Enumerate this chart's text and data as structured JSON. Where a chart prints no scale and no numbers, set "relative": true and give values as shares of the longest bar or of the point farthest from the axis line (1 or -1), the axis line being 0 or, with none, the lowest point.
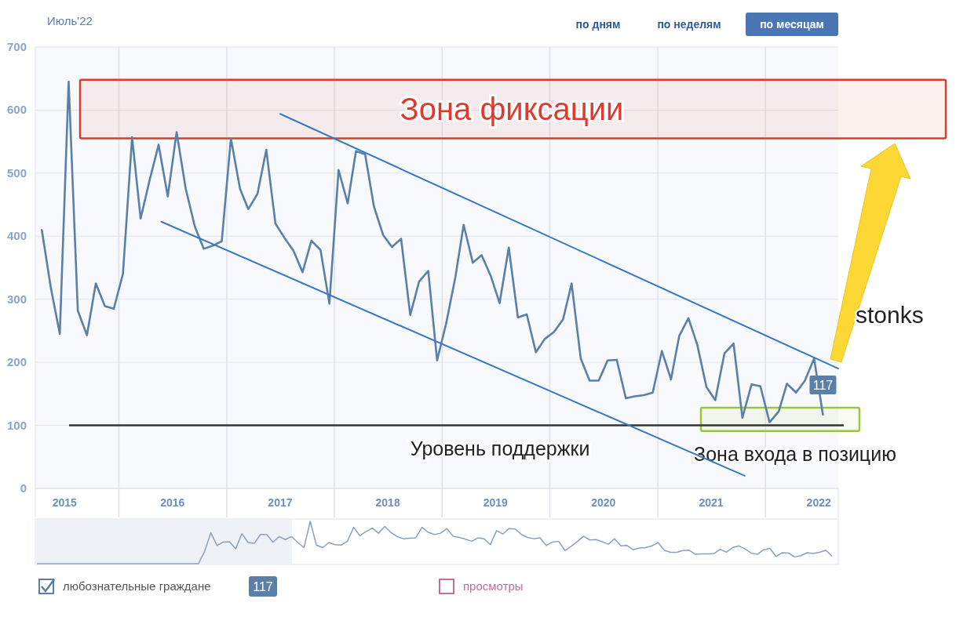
{
  "chart_data": [
    {
      "type": "line",
      "title": "Июль'22",
      "x": [
        "2015-04-15",
        "2015-05-15",
        "2015-06-15",
        "2015-07-15",
        "2015-08-15",
        "2015-09-15",
        "2015-10-15",
        "2015-11-15",
        "2015-12-15",
        "2016-01-15",
        "2016-02-15",
        "2016-03-15",
        "2016-04-15",
        "2016-05-15",
        "2016-06-15",
        "2016-07-15",
        "2016-08-15",
        "2016-09-15",
        "2016-10-15",
        "2016-11-15",
        "2016-12-15",
        "2017-01-15",
        "2017-02-15",
        "2017-03-15",
        "2017-04-15",
        "2017-05-15",
        "2017-06-15",
        "2017-07-15",
        "2017-08-15",
        "2017-09-15",
        "2017-10-15",
        "2017-11-15",
        "2017-12-15",
        "2018-01-15",
        "2018-02-15",
        "2018-03-15",
        "2018-04-15",
        "2018-05-15",
        "2018-06-15",
        "2018-07-15",
        "2018-08-15",
        "2018-09-15",
        "2018-10-15",
        "2018-11-15",
        "2018-12-15",
        "2019-01-15",
        "2019-02-15",
        "2019-03-15",
        "2019-04-15",
        "2019-05-15",
        "2019-06-15",
        "2019-07-15",
        "2019-08-15",
        "2019-09-15",
        "2019-10-15",
        "2019-11-15",
        "2019-12-15",
        "2020-01-15",
        "2020-02-15",
        "2020-03-15",
        "2020-04-15",
        "2020-05-15",
        "2020-06-15",
        "2020-07-15",
        "2020-08-15",
        "2020-09-15",
        "2020-10-15",
        "2020-11-15",
        "2020-12-15",
        "2021-01-15",
        "2021-02-15",
        "2021-03-15",
        "2021-04-15",
        "2021-05-15",
        "2021-06-15",
        "2021-07-15",
        "2021-08-15",
        "2021-09-15",
        "2021-10-15",
        "2021-11-15",
        "2021-12-15",
        "2022-01-15",
        "2022-02-15",
        "2022-03-15",
        "2022-04-15",
        "2022-05-15",
        "2022-06-15",
        "2022-07-15"
      ],
      "series": [
        {
          "name": "любознательные граждане",
          "color": "#5b80a8",
          "values": [
            410,
            320,
            245,
            645,
            282,
            243,
            325,
            289,
            285,
            340,
            557,
            428,
            490,
            545,
            463,
            565,
            475,
            415,
            380,
            385,
            392,
            555,
            475,
            443,
            467,
            537,
            420,
            398,
            377,
            343,
            393,
            378,
            293,
            505,
            452,
            535,
            530,
            447,
            402,
            383,
            396,
            275,
            328,
            345,
            203,
            262,
            335,
            418,
            358,
            370,
            337,
            294,
            382,
            271,
            276,
            216,
            237,
            248,
            268,
            325,
            206,
            171,
            171,
            203,
            204,
            143,
            146,
            148,
            152,
            218,
            173,
            242,
            270,
            228,
            161,
            140,
            214,
            230,
            112,
            165,
            162,
            105,
            122,
            166,
            152,
            171,
            206,
            117
          ],
          "value_labels": [
            null,
            null,
            null,
            null,
            null,
            null,
            null,
            null,
            null,
            null,
            null,
            null,
            null,
            null,
            null,
            null,
            null,
            null,
            null,
            null,
            null,
            null,
            null,
            null,
            null,
            null,
            null,
            null,
            null,
            null,
            null,
            null,
            null,
            null,
            null,
            null,
            null,
            null,
            null,
            null,
            null,
            null,
            null,
            null,
            null,
            null,
            null,
            null,
            null,
            null,
            null,
            null,
            null,
            null,
            null,
            null,
            null,
            null,
            null,
            null,
            null,
            null,
            null,
            null,
            null,
            null,
            null,
            null,
            null,
            null,
            null,
            null,
            null,
            null,
            null,
            null,
            null,
            null,
            null,
            null,
            null,
            null,
            null,
            null,
            null,
            null,
            null,
            "117"
          ]
        },
        {
          "name": "просмотры",
          "color": "#c0709a",
          "values": [
            null,
            null,
            null,
            null,
            null,
            null,
            null,
            null,
            null,
            null,
            null,
            null,
            null,
            null,
            null,
            null,
            null,
            null,
            null,
            null,
            null,
            null,
            null,
            null,
            null,
            null,
            null,
            null,
            null,
            null,
            null,
            null,
            null,
            null,
            null,
            null,
            null,
            null,
            null,
            null,
            null,
            null,
            null,
            null,
            null,
            null,
            null,
            null,
            null,
            null,
            null,
            null,
            null,
            null,
            null,
            null,
            null,
            null,
            null,
            null,
            null,
            null,
            null,
            null,
            null,
            null,
            null,
            null,
            null,
            null,
            null,
            null,
            null,
            null,
            null,
            null,
            null,
            null,
            null,
            null,
            null,
            null,
            null,
            null,
            null,
            null,
            null,
            null
          ]
        },
        {
          "type": "line",
          "color": "#3a78c3",
          "x": [
            "2017-07-01",
            "2022-09-05"
          ],
          "values": [
            594,
            190
          ]
        },
        {
          "type": "line",
          "color": "#3a78c3",
          "x": [
            "2016-05-24",
            "2021-10-23"
          ],
          "values": [
            423,
            20
          ]
        }
      ],
      "xlim": [
        "2015-03-24",
        "2022-09-05"
      ],
      "xticks": [
        {
          "value": "2015-07-01",
          "label": "2015"
        },
        {
          "value": "2016-01-01",
          "label": null
        },
        {
          "value": "2016-07-01",
          "label": "2016"
        },
        {
          "value": "2017-01-01",
          "label": null
        },
        {
          "value": "2017-07-01",
          "label": "2017"
        },
        {
          "value": "2018-01-01",
          "label": null
        },
        {
          "value": "2018-07-01",
          "label": "2018"
        },
        {
          "value": "2019-01-01",
          "label": null
        },
        {
          "value": "2019-07-01",
          "label": "2019"
        },
        {
          "value": "2020-01-01",
          "label": null
        },
        {
          "value": "2020-07-01",
          "label": "2020"
        },
        {
          "value": "2021-01-01",
          "label": null
        },
        {
          "value": "2021-07-01",
          "label": "2021"
        },
        {
          "value": "2022-01-01",
          "label": null
        },
        {
          "value": "2022-07-01",
          "label": "2022"
        }
      ],
      "ylim": [
        0,
        700
      ],
      "yticks": [
        0,
        100,
        200,
        300,
        400,
        500,
        600,
        700
      ],
      "grid": true,
      "legend": "bottom left",
      "marker": "none",
      "line_style": "solid",
      "ref_lines": [
        {
          "axis": "y",
          "value": 100,
          "label": "Уровень поддержки",
          "color": "#333333"
        }
      ],
      "bands": [
        {
          "axis": "y",
          "from": 555,
          "to": 648,
          "label": "Зона фиксации",
          "color": "#e03a2f"
        },
        {
          "axis": "y",
          "from": 91,
          "to": 128,
          "label": "Зона входа в позицию",
          "color": "#9bc53d"
        }
      ],
      "annotations": [
        "по дням",
        "по неделям",
        "по месяцам",
        "stonks",
        "117"
      ]
    },
    {
      "type": "line",
      "relative": true,
      "categories": [
        null,
        null,
        null,
        null,
        null,
        null,
        null,
        null,
        null,
        null,
        null,
        null,
        null,
        null,
        null,
        null,
        null,
        null,
        null,
        null,
        null,
        null,
        null,
        null,
        null,
        null,
        null,
        null,
        null,
        null,
        null,
        null,
        null,
        null,
        null,
        null,
        null,
        null,
        null,
        null,
        null,
        null,
        null,
        null,
        null,
        null,
        null,
        null,
        null,
        null,
        null,
        null,
        null,
        null,
        null,
        null,
        null,
        null,
        null,
        null,
        null,
        null,
        null,
        null,
        null,
        null,
        null,
        null,
        null,
        null,
        null,
        null,
        null,
        null,
        null,
        null,
        null,
        null,
        null,
        null,
        null,
        null,
        null,
        null,
        null,
        null,
        null,
        null,
        null,
        null,
        null,
        null,
        null,
        null,
        null,
        null,
        null,
        null,
        null,
        null,
        null,
        null,
        null,
        null,
        null,
        null,
        null,
        null,
        null,
        null,
        null,
        null,
        null,
        null,
        null,
        null,
        null,
        null,
        null,
        null,
        null,
        null,
        null,
        null,
        null,
        null,
        null,
        null,
        null
      ],
      "series": [
        {
          "color": "#8aa1bd",
          "values": [
            0,
            0,
            0,
            0,
            0,
            0,
            0,
            0,
            0,
            0,
            0,
            0,
            0,
            0,
            0,
            0,
            0,
            0,
            0,
            0,
            0,
            0,
            0,
            0,
            0,
            0,
            0,
            0.29,
            0.73,
            0.43,
            0.51,
            0.52,
            0.35,
            0.71,
            0.5,
            0.48,
            0.69,
            0.69,
            0.51,
            0.64,
            0.57,
            0.64,
            0.5,
            0.38,
            1,
            0.44,
            0.38,
            0.5,
            0.45,
            0.44,
            0.53,
            0.86,
            0.66,
            0.76,
            0.84,
            0.72,
            0.88,
            0.74,
            0.64,
            0.59,
            0.6,
            0.61,
            0.86,
            0.74,
            0.69,
            0.72,
            0.83,
            0.65,
            0.62,
            0.58,
            0.53,
            0.61,
            0.59,
            0.45,
            0.78,
            0.7,
            0.83,
            0.82,
            0.69,
            0.62,
            0.59,
            0.61,
            0.43,
            0.51,
            0.53,
            0.31,
            0.41,
            0.52,
            0.65,
            0.56,
            0.57,
            0.52,
            0.46,
            0.59,
            0.42,
            0.43,
            0.33,
            0.37,
            0.38,
            0.42,
            0.5,
            0.32,
            0.27,
            0.27,
            0.31,
            0.32,
            0.22,
            0.23,
            0.23,
            0.24,
            0.34,
            0.27,
            0.38,
            0.42,
            0.35,
            0.25,
            0.22,
            0.33,
            0.36,
            0.17,
            0.26,
            0.25,
            0.16,
            0.19,
            0.26,
            0.24,
            0.27,
            0.32,
            0.18
          ]
        }
      ]
    }
  ]
}
